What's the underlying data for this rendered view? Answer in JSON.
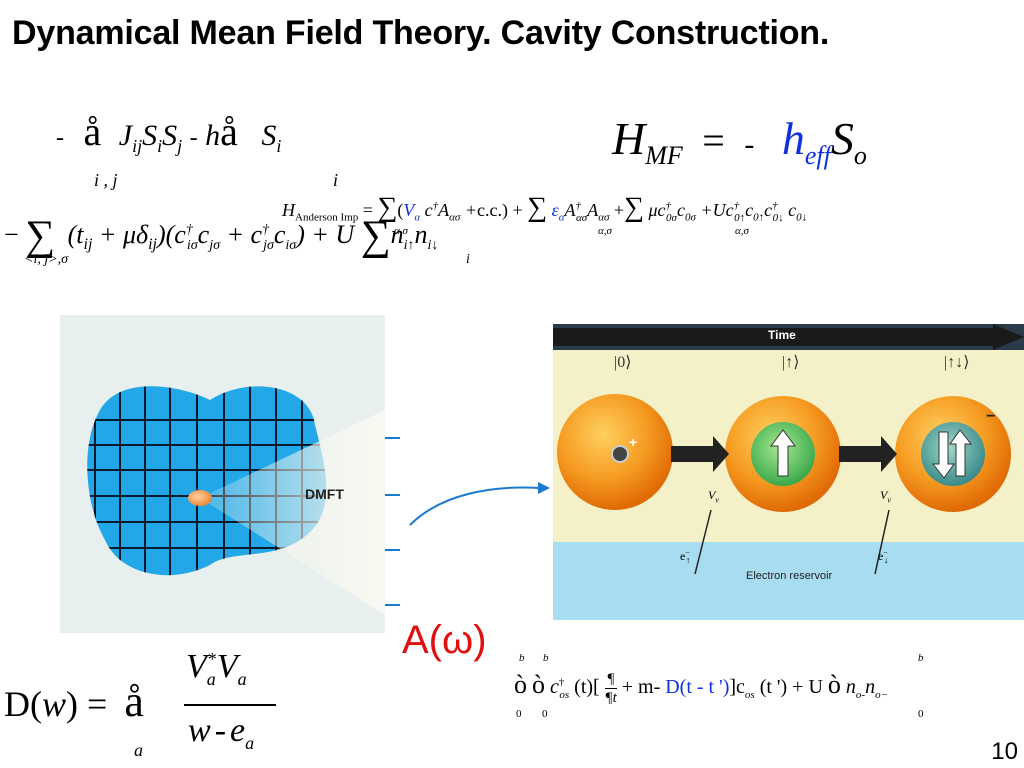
{
  "title": "Dynamical Mean Field Theory. Cavity Construction.",
  "slide_number": "10",
  "equations": {
    "ising": {
      "minus1": "-",
      "sum_glyph": "å",
      "sum_index1": "i , j",
      "J": "J",
      "J_sub": "ij",
      "S1": "S",
      "S1_sub": "i",
      "S2": "S",
      "S2_sub": "j",
      "minus2": "-",
      "h": "h",
      "sum_index2": "i",
      "S3": "S",
      "S3_sub": "i"
    },
    "mean_field": {
      "H": "H",
      "H_sub": "MF",
      "equals": "=",
      "minus": "-",
      "h": "h",
      "h_sub": "eff",
      "S": "S",
      "S_sub": "o"
    },
    "hubbard": {
      "minus": "−",
      "sum_index": "<i, j>,σ",
      "term": "(t",
      "t_sub": "ij",
      "plus_mu": " + μδ",
      "delta_sub": "ij",
      "hop": ")(c",
      "U_part": ") + U",
      "sum_index2": "i",
      "n_part": "n",
      "n_sub1": "i↑",
      "n2": "n",
      "n_sub2": "i↓"
    },
    "anderson": {
      "H": "H",
      "H_sub": "Anderson Imp",
      "eq": " = ",
      "V": "V",
      "V_sub": "α",
      "term1_rest": "c.c.) +",
      "sum_index": "α,σ",
      "eps": "ε",
      "eps_sub": "α",
      "A": "A",
      "A_sub1": "ασ",
      "A_sub2": "ασ",
      "plus": " +",
      "mu_c": "μc",
      "c_sub1": "0σ",
      "c_sub2": "0σ",
      "Uc": "+Uc",
      "c_sub3": "0↑",
      "c_sub4": "0↑",
      "c_sub5": "0↓",
      "c_sub6": "0↓"
    },
    "delta": {
      "D": "D",
      "w": "w",
      "equals": "=",
      "sum_glyph": "å",
      "sum_index": "a",
      "V1": "V",
      "V1_sub": "a",
      "star": "*",
      "V2": "V",
      "V2_sub": "a",
      "w2": "w",
      "minus": "-",
      "e": "e",
      "e_sub": "a"
    },
    "spectral": "A(ω)",
    "action": {
      "b1": "b",
      "b2": "b",
      "b3": "b",
      "int": "ò",
      "zero": "0",
      "c": "c",
      "c_sub": "os",
      "dagger": "†",
      "t_arg": "(t)[",
      "deriv_num": "¶",
      "deriv_den": "¶t",
      "plus_m": "+ m-",
      "Delta": "D(t - t ')",
      "rest": "]c",
      "rest_sub": "os",
      "targ2": "(t ') + U",
      "n1": "n",
      "n1_sub": "o-",
      "n2": "n",
      "n2_sub": "o−"
    }
  },
  "figures": {
    "dmft": {
      "label": "DMFT",
      "lattice_color": "#22a8e8",
      "site_color": "#f08a3a",
      "bath_color": "#f2f2e8"
    },
    "process": {
      "time_label": "Time",
      "state0": "|0⟩",
      "state1": "|↑⟩",
      "state2": "|↑↓⟩",
      "plus_charge": "+",
      "minus_charge": "−",
      "vv1": "V",
      "vv1_sub": "v",
      "vv2": "V",
      "vv2_sub": "v",
      "e1": "e",
      "e1_sub": "↑",
      "e2": "e",
      "e2_sub": "↓",
      "reservoir": "Electron reservoir",
      "sphere_color": "#f07a10",
      "reservoir_color": "#a8dcf0"
    }
  }
}
